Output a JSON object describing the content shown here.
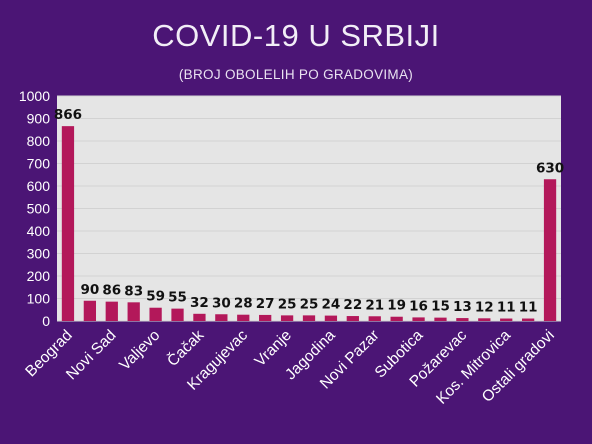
{
  "chart_data": {
    "type": "bar",
    "title": "COVID-19 U SRBIJI",
    "subtitle": "(BROJ OBOLELIH PO GRADOVIMA)",
    "xlabel": "",
    "ylabel": "",
    "ylim": [
      0,
      1000
    ],
    "yticks": [
      0,
      100,
      200,
      300,
      400,
      500,
      600,
      700,
      800,
      900,
      1000
    ],
    "grid": true,
    "bar_color": "#b3185a",
    "plot_background": "#e5e5e5",
    "page_background": "#4b1575",
    "categories": [
      "Beograd",
      "",
      "Novi Sad",
      "",
      "Valjevo",
      "",
      "Čačak",
      "",
      "Kragujevac",
      "",
      "Vranje",
      "",
      "Jagodina",
      "",
      "Novi Pazar",
      "",
      "Subotica",
      "",
      "Požarevac",
      "",
      "Kos. Mitrovica",
      "",
      "Ostali gradovi"
    ],
    "values": [
      866,
      90,
      86,
      83,
      59,
      55,
      32,
      30,
      28,
      27,
      25,
      25,
      24,
      22,
      21,
      19,
      16,
      15,
      13,
      12,
      11,
      11,
      630
    ]
  }
}
